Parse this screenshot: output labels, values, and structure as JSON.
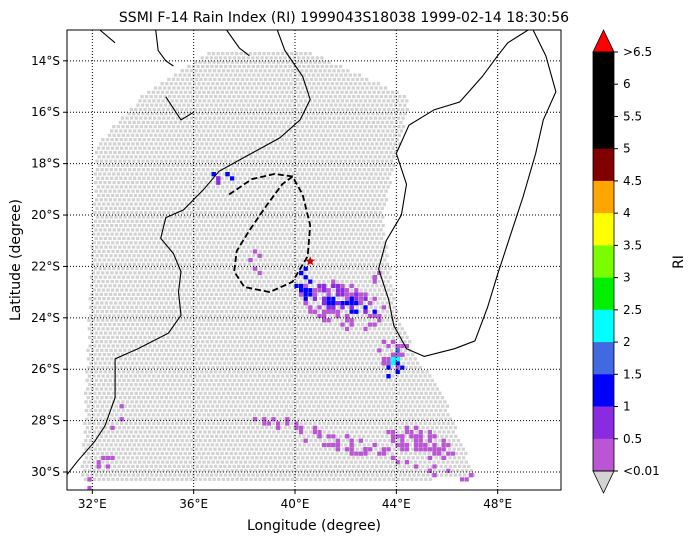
{
  "title": "SSMI F-14 Rain Index (RI) 1999043S18038 1999-02-14 18:30:56",
  "xlabel": "Longitude (degree)",
  "ylabel": "Latitude (degree)",
  "colorbar": {
    "label": "RI",
    "ticks": [
      ">6.5",
      "6",
      "5.5",
      "5",
      "4.5",
      "4",
      "3.5",
      "3",
      "2.5",
      "2",
      "1.5",
      "1",
      "0.5",
      "<0.01"
    ],
    "colors": [
      "#000000",
      "#000000",
      "#000000",
      "#800000",
      "#ffa500",
      "#ffff00",
      "#7cfc00",
      "#00ee00",
      "#00ffff",
      "#4169e1",
      "#0000ff",
      "#8a2be2",
      "#ba55d3"
    ],
    "over_color": "#ff0000",
    "under_color": "#d3d3d3"
  },
  "chart_data": {
    "type": "map",
    "xlim": [
      31,
      50.5
    ],
    "ylim": [
      -30.7,
      -12.8
    ],
    "xticks": [
      {
        "v": 32,
        "t": "32°E"
      },
      {
        "v": 36,
        "t": "36°E"
      },
      {
        "v": 40,
        "t": "40°E"
      },
      {
        "v": 44,
        "t": "44°E"
      },
      {
        "v": 48,
        "t": "48°E"
      }
    ],
    "yticks": [
      {
        "v": -14,
        "t": "14°S"
      },
      {
        "v": -16,
        "t": "16°S"
      },
      {
        "v": -18,
        "t": "18°S"
      },
      {
        "v": -20,
        "t": "20°S"
      },
      {
        "v": -22,
        "t": "22°S"
      },
      {
        "v": -24,
        "t": "24°S"
      },
      {
        "v": -26,
        "t": "26°S"
      },
      {
        "v": -28,
        "t": "28°S"
      },
      {
        "v": -30,
        "t": "30°S"
      }
    ],
    "grid": "dotted",
    "storm_center": {
      "lon": 40.6,
      "lat": -21.8,
      "marker": "star",
      "color": "#cc0000"
    },
    "track_loop": [
      [
        37.4,
        -19.2
      ],
      [
        38.3,
        -18.6
      ],
      [
        39.2,
        -18.4
      ],
      [
        39.9,
        -18.5
      ],
      [
        40.3,
        -19.2
      ],
      [
        40.6,
        -20.4
      ],
      [
        40.5,
        -21.6
      ],
      [
        39.9,
        -22.6
      ],
      [
        39.0,
        -23.0
      ],
      [
        38.0,
        -22.8
      ],
      [
        37.6,
        -22.2
      ],
      [
        37.7,
        -21.4
      ],
      [
        38.2,
        -20.6
      ],
      [
        38.9,
        -19.6
      ],
      [
        39.5,
        -18.8
      ],
      [
        39.9,
        -18.5
      ]
    ],
    "swath_outline": [
      [
        32.1,
        -17.2
      ],
      [
        34.0,
        -15.2
      ],
      [
        36.5,
        -13.6
      ],
      [
        40.5,
        -13.6
      ],
      [
        42.8,
        -14.6
      ],
      [
        44.5,
        -15.4
      ],
      [
        43.4,
        -20.0
      ],
      [
        44.0,
        -24.0
      ],
      [
        44.8,
        -25.5
      ],
      [
        45.8,
        -27.0
      ],
      [
        47.1,
        -30.2
      ],
      [
        31.5,
        -30.4
      ],
      [
        32.1,
        -17.2
      ]
    ],
    "rain_regions": [
      {
        "ri": "0.01-0.5",
        "cx": 41.8,
        "cy": -23.4,
        "rx": 1.8,
        "ry": 0.85,
        "rot": -18,
        "n": 85
      },
      {
        "ri": "0.5-1",
        "cx": 41.7,
        "cy": -23.2,
        "rx": 1.2,
        "ry": 0.5,
        "rot": -18,
        "n": 30
      },
      {
        "ri": "1-1.5",
        "cx": 40.3,
        "cy": -22.6,
        "rx": 0.35,
        "ry": 0.55,
        "rot": 0,
        "n": 16
      },
      {
        "ri": "1-1.5",
        "cx": 42.1,
        "cy": -23.4,
        "rx": 1.1,
        "ry": 0.3,
        "rot": -18,
        "n": 16
      },
      {
        "ri": "1-1.5",
        "cx": 43.8,
        "cy": -25.8,
        "rx": 0.4,
        "ry": 0.45,
        "rot": 0,
        "n": 10
      },
      {
        "ri": "2-2.5",
        "cx": 43.8,
        "cy": -25.3,
        "rx": 0.3,
        "ry": 0.3,
        "rot": 0,
        "n": 8
      },
      {
        "ri": "2.5-3",
        "cx": 43.9,
        "cy": -25.5,
        "rx": 0.18,
        "ry": 0.18,
        "rot": 0,
        "n": 6
      },
      {
        "ri": "0.01-0.5",
        "cx": 43.8,
        "cy": -25.2,
        "rx": 0.5,
        "ry": 0.7,
        "rot": 0,
        "n": 18
      },
      {
        "ri": "0.01-0.5",
        "cx": 41.5,
        "cy": -28.7,
        "rx": 3.4,
        "ry": 0.35,
        "rot": -15,
        "n": 55
      },
      {
        "ri": "0.01-0.5",
        "cx": 44.9,
        "cy": -28.8,
        "rx": 1.4,
        "ry": 0.5,
        "rot": -15,
        "n": 55
      },
      {
        "ri": "0.01-0.5",
        "cx": 45.8,
        "cy": -29.9,
        "rx": 1.3,
        "ry": 0.2,
        "rot": -10,
        "n": 12
      },
      {
        "ri": "0.01-0.5",
        "cx": 38.4,
        "cy": -21.8,
        "rx": 0.25,
        "ry": 0.6,
        "rot": 0,
        "n": 5
      },
      {
        "ri": "0.01-0.5",
        "cx": 32.4,
        "cy": -29.6,
        "rx": 0.5,
        "ry": 0.4,
        "rot": 0,
        "n": 6
      },
      {
        "ri": "0.01-0.5",
        "cx": 32.8,
        "cy": -27.7,
        "rx": 0.4,
        "ry": 0.6,
        "rot": 0,
        "n": 3
      },
      {
        "ri": "0.01-0.5",
        "cx": 31.8,
        "cy": -30.3,
        "rx": 0.15,
        "ry": 0.3,
        "rot": 0,
        "n": 3
      },
      {
        "ri": "1-1.5",
        "cx": 37.1,
        "cy": -18.3,
        "rx": 0.4,
        "ry": 0.3,
        "rot": 0,
        "n": 5
      },
      {
        "ri": "0.5-1",
        "cx": 36.8,
        "cy": -18.6,
        "rx": 0.2,
        "ry": 0.15,
        "rot": 0,
        "n": 3
      },
      {
        "ri": "0.01-0.5",
        "cx": 43.1,
        "cy": -22.0,
        "rx": 0.2,
        "ry": 0.7,
        "rot": 0,
        "n": 5
      }
    ]
  }
}
